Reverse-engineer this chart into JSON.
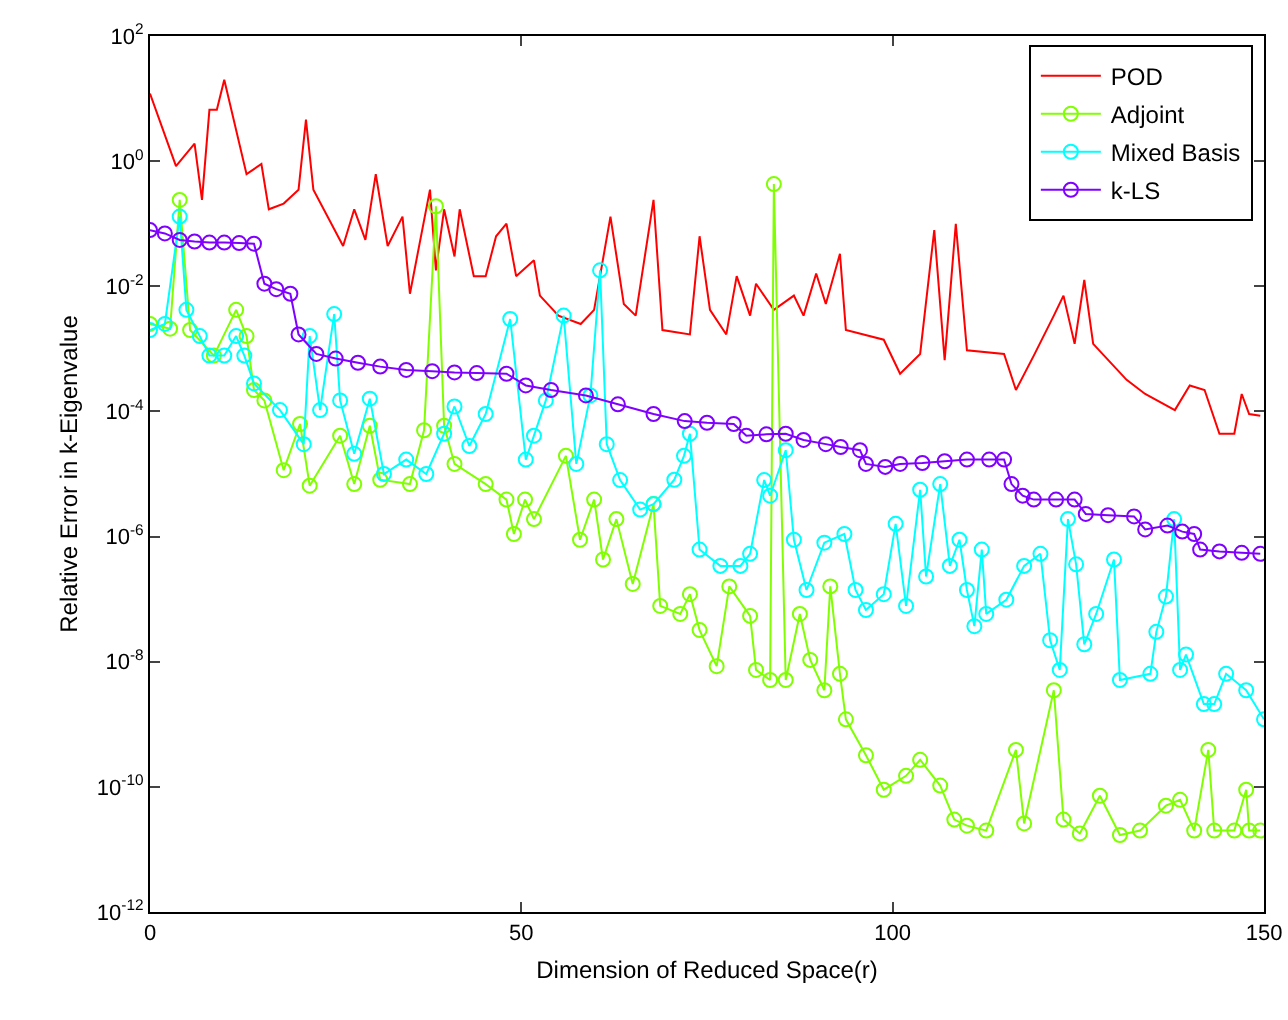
{
  "chart_data": {
    "type": "line",
    "xlabel": "Dimension of Reduced Space(r)",
    "ylabel": "Relative Error in k-Eigenvalue",
    "log": "y",
    "grid": false,
    "legend": "top right",
    "line_style": "solid",
    "xlim": [
      0,
      150
    ],
    "xticks": [
      0,
      50,
      100,
      150
    ],
    "ylim": [
      1e-12,
      100
    ],
    "yticks": [
      {
        "value": 100,
        "label": "10$^{2}$"
      },
      {
        "value": 1,
        "label": "10$^{0}$"
      },
      {
        "value": 0.01,
        "label": "10$^{-2}$"
      },
      {
        "value": 0.0001,
        "label": "10$^{-4}$"
      },
      {
        "value": 1e-06,
        "label": "10$^{-6}$"
      },
      {
        "value": 1e-08,
        "label": "10$^{-8}$"
      },
      {
        "value": 1e-10,
        "label": "10$^{-10}$"
      },
      {
        "value": 1e-12,
        "label": "10$^{-12}$"
      }
    ],
    "series": [
      {
        "name": "POD",
        "color": "#ff0000",
        "marker": "none",
        "x": [
          0,
          3.5,
          6,
          7,
          8,
          9,
          10,
          13,
          15,
          16,
          18,
          20,
          21,
          22,
          26,
          27.5,
          29,
          30.4,
          32,
          34,
          35,
          37.7,
          38.5,
          39.6,
          41,
          41.7,
          43.6,
          45.2,
          46.6,
          48,
          49.3,
          51.7,
          52.5,
          55,
          58,
          59.8,
          62,
          63.8,
          65.4,
          67.8,
          69,
          72.7,
          74,
          75.4,
          77.6,
          79,
          80.8,
          81.6,
          84,
          86.7,
          88,
          89.7,
          91,
          92.9,
          93.7,
          98.8,
          101,
          103.7,
          105.6,
          107,
          108.5,
          110,
          115,
          116.6,
          119,
          121.7,
          123,
          124.5,
          125.8,
          127,
          131.5,
          134,
          138,
          140,
          142,
          144,
          146,
          147,
          148,
          149.5
        ],
        "values": [
          12,
          0.83,
          1.9,
          0.24,
          6.6,
          6.6,
          20,
          0.62,
          0.9,
          0.17,
          0.21,
          0.35,
          4.6,
          0.35,
          0.044,
          0.17,
          0.055,
          0.62,
          0.044,
          0.13,
          0.0076,
          0.35,
          0.018,
          0.17,
          0.03,
          0.17,
          0.0145,
          0.0145,
          0.063,
          0.1,
          0.0145,
          0.026,
          0.0071,
          0.0034,
          0.0025,
          0.0042,
          0.13,
          0.0052,
          0.0034,
          0.24,
          0.002,
          0.0017,
          0.063,
          0.0042,
          0.0017,
          0.0145,
          0.0034,
          0.011,
          0.0042,
          0.0071,
          0.0034,
          0.016,
          0.0052,
          0.033,
          0.002,
          0.0014,
          0.0004,
          0.00083,
          0.079,
          0.00066,
          0.1,
          0.00095,
          0.00083,
          0.00022,
          0.00078,
          0.0034,
          0.0071,
          0.0012,
          0.0126,
          0.0012,
          0.00032,
          0.00019,
          0.000105,
          0.00026,
          0.00022,
          4.4e-05,
          4.4e-05,
          0.00019,
          9.1e-05,
          8.5e-05
        ]
      },
      {
        "name": "Adjoint",
        "color": "#80ff00",
        "marker": "circle",
        "x": [
          0,
          2.7,
          4,
          5.4,
          8.6,
          11.6,
          13,
          14,
          15.4,
          18,
          20.2,
          21.5,
          25.6,
          27.5,
          29.6,
          31,
          35,
          36.9,
          38.5,
          39.6,
          41,
          45.2,
          48,
          49,
          50.5,
          51.7,
          56,
          57.9,
          59.8,
          61,
          62.8,
          65,
          67.8,
          68.7,
          71.4,
          72.7,
          74,
          76.3,
          78,
          80.8,
          81.6,
          83.5,
          84,
          85.6,
          87.5,
          88.9,
          90.8,
          91.6,
          92.9,
          93.7,
          96.4,
          98.8,
          101.8,
          103.7,
          106.4,
          108.3,
          110,
          112.6,
          116.6,
          117.7,
          121.7,
          123,
          125.2,
          127.9,
          130.6,
          133.3,
          136.8,
          138.7,
          140.6,
          142.5,
          143.3,
          146,
          147.6,
          148,
          149.5
        ],
        "values": [
          0.0025,
          0.0021,
          0.24,
          0.002,
          0.00078,
          0.0042,
          0.0016,
          0.00022,
          0.00015,
          1.15e-05,
          6.3e-05,
          6.5e-06,
          4.1e-05,
          6.9e-06,
          5.9e-05,
          8.1e-06,
          6.9e-06,
          5e-05,
          0.19,
          5.9e-05,
          1.45e-05,
          6.9e-06,
          3.9e-06,
          1.1e-06,
          3.9e-06,
          1.9e-06,
          1.95e-05,
          8.9e-07,
          3.9e-06,
          4.3e-07,
          1.9e-06,
          1.75e-07,
          3.3e-06,
          7.8e-08,
          5.8e-08,
          1.2e-07,
          3.2e-08,
          8.5e-09,
          1.6e-07,
          5.4e-08,
          7.4e-09,
          5.1e-09,
          0.43,
          5.1e-09,
          5.8e-08,
          1.07e-08,
          3.5e-09,
          1.6e-07,
          6.4e-09,
          1.2e-09,
          3.2e-10,
          9e-11,
          1.5e-10,
          2.7e-10,
          1.05e-10,
          3e-11,
          2.4e-11,
          2e-11,
          3.9e-10,
          2.6e-11,
          3.5e-09,
          3e-11,
          1.8e-11,
          7.2e-11,
          1.7e-11,
          2e-11,
          5e-11,
          6.2e-11,
          2e-11,
          3.9e-10,
          2e-11,
          2e-11,
          9e-11,
          2e-11,
          2e-11
        ]
      },
      {
        "name": "Mixed Basis",
        "color": "#00ffff",
        "marker": "circle",
        "x": [
          0,
          2,
          4,
          4.9,
          6.7,
          8,
          10,
          11.6,
          12.7,
          14,
          17.5,
          20.7,
          21.5,
          22.9,
          24.8,
          25.6,
          27.5,
          29.6,
          31.5,
          34.5,
          37.2,
          39.6,
          41,
          43,
          45.2,
          48.5,
          50.6,
          51.7,
          53.3,
          55.7,
          57.4,
          59.3,
          60.6,
          61.5,
          63.3,
          66,
          67.8,
          70.6,
          71.9,
          72.7,
          74,
          76.8,
          79.5,
          80.8,
          82.7,
          83.5,
          85.6,
          86.7,
          88.4,
          90.8,
          93.5,
          95,
          96.4,
          98.8,
          100.4,
          101.8,
          103.7,
          104.5,
          106.4,
          107.7,
          109,
          110,
          111,
          112,
          112.6,
          115.3,
          117.7,
          119.9,
          121.2,
          122.5,
          123.6,
          124.7,
          125.8,
          127.4,
          129.8,
          130.6,
          134.7,
          135.5,
          136.8,
          137.9,
          138.7,
          139.5,
          141.9,
          143.3,
          144.9,
          147.6,
          150
        ],
        "values": [
          0.002,
          0.0025,
          0.13,
          0.0042,
          0.0016,
          0.00078,
          0.00078,
          0.0016,
          0.00078,
          0.00028,
          0.000105,
          3e-05,
          0.0016,
          0.000105,
          0.0036,
          0.00015,
          2.1e-05,
          0.00016,
          1e-05,
          1.7e-05,
          1e-05,
          4.4e-05,
          0.00012,
          2.8e-05,
          9.1e-05,
          0.003,
          1.7e-05,
          4.1e-05,
          0.00015,
          0.0034,
          1.45e-05,
          0.00018,
          0.018,
          3e-05,
          8e-06,
          2.7e-06,
          3.3e-06,
          8.1e-06,
          1.95e-05,
          4.4e-05,
          6.2e-07,
          3.4e-07,
          3.4e-07,
          5.3e-07,
          8e-06,
          4.5e-06,
          2.4e-05,
          8.9e-07,
          1.4e-07,
          8e-07,
          1.1e-06,
          1.4e-07,
          6.7e-08,
          1.2e-07,
          1.6e-06,
          7.8e-08,
          5.6e-06,
          2.3e-07,
          6.9e-06,
          3.4e-07,
          8.9e-07,
          1.4e-07,
          3.7e-08,
          6.2e-07,
          5.8e-08,
          9.8e-08,
          3.4e-07,
          5.3e-07,
          2.2e-08,
          7.4e-09,
          1.9e-06,
          3.6e-07,
          1.9e-08,
          5.8e-08,
          4.3e-07,
          5.1e-09,
          6.4e-09,
          3e-08,
          1.1e-07,
          1.9e-06,
          7.4e-09,
          1.3e-08,
          2.1e-09,
          2.1e-09,
          6.4e-09,
          3.5e-09,
          1.2e-09
        ]
      },
      {
        "name": "k-LS",
        "color": "#8000ff",
        "marker": "circle",
        "x": [
          0,
          2,
          4,
          6,
          8,
          10,
          12,
          14,
          15.4,
          17,
          18.9,
          20,
          22.4,
          25,
          28,
          31,
          34.5,
          38,
          41,
          44,
          48,
          50.6,
          54,
          58.7,
          63,
          67.8,
          72,
          75,
          78.6,
          80.3,
          83,
          85.6,
          88,
          91,
          93,
          95.6,
          96.4,
          99,
          101,
          104,
          107,
          110,
          113,
          115,
          116,
          117.5,
          119,
          122,
          124.5,
          126,
          129,
          132.5,
          134,
          137,
          139,
          140.6,
          141.4,
          144,
          147,
          149.5
        ],
        "values": [
          0.079,
          0.07,
          0.055,
          0.052,
          0.05,
          0.05,
          0.049,
          0.048,
          0.011,
          0.009,
          0.0076,
          0.0017,
          0.00083,
          0.0007,
          0.0006,
          0.00052,
          0.00046,
          0.00044,
          0.00042,
          0.00041,
          0.0004,
          0.00026,
          0.00022,
          0.00018,
          0.00013,
          9.1e-05,
          7e-05,
          6.6e-05,
          6.3e-05,
          4.1e-05,
          4.3e-05,
          4.4e-05,
          3.5e-05,
          3e-05,
          2.7e-05,
          2.4e-05,
          1.45e-05,
          1.3e-05,
          1.45e-05,
          1.5e-05,
          1.6e-05,
          1.7e-05,
          1.7e-05,
          1.7e-05,
          6.9e-06,
          4.5e-06,
          3.9e-06,
          3.9e-06,
          3.9e-06,
          2.3e-06,
          2.2e-06,
          2.1e-06,
          1.3e-06,
          1.5e-06,
          1.2e-06,
          1.1e-06,
          6.2e-07,
          5.8e-07,
          5.5e-07,
          5.3e-07
        ]
      }
    ]
  }
}
